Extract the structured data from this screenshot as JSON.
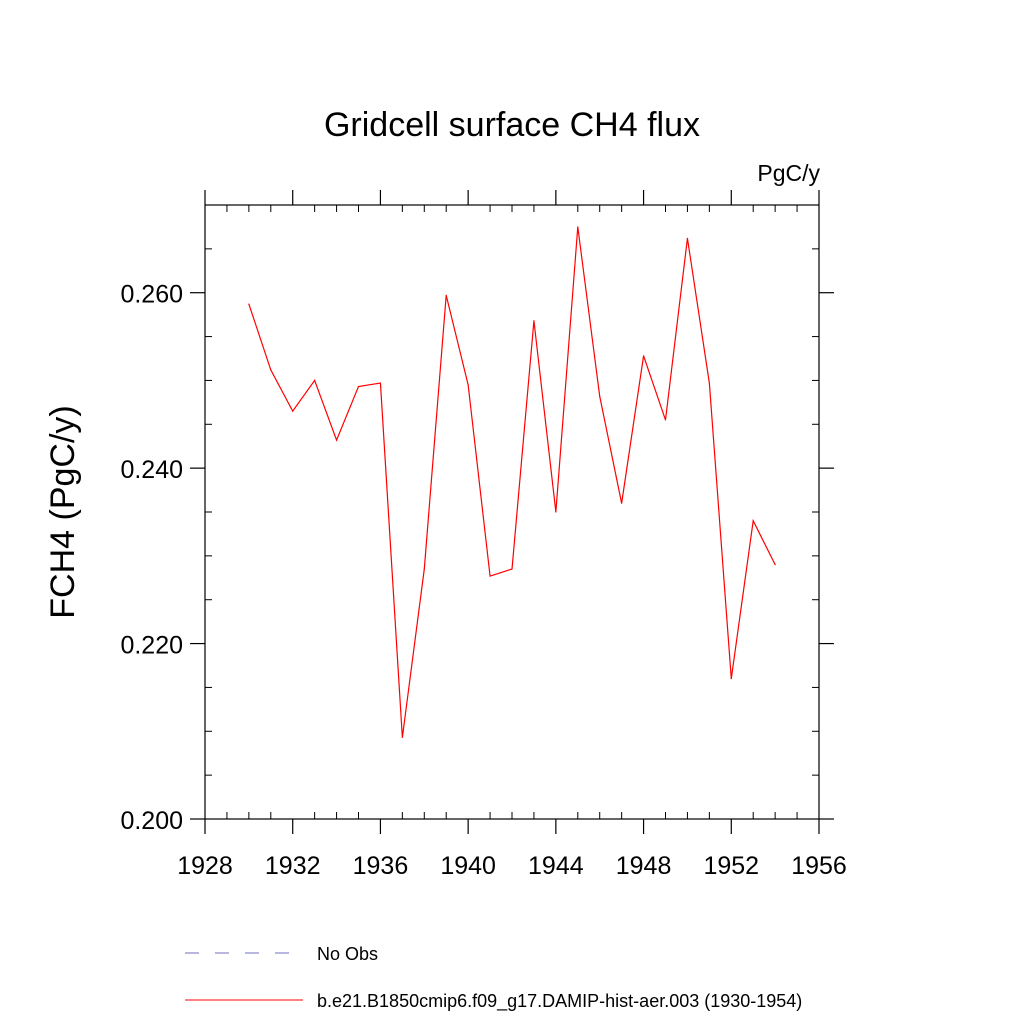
{
  "chart_data": {
    "type": "line",
    "title": "Gridcell surface CH4 flux",
    "units_label": "PgC/y",
    "ylabel": "FCH4  (PgC/y)",
    "xlabel": "",
    "xlim": [
      1928,
      1956
    ],
    "ylim": [
      0.2,
      0.27
    ],
    "x_ticks": [
      1928,
      1932,
      1936,
      1940,
      1944,
      1948,
      1952,
      1956
    ],
    "x_tick_labels": [
      "1928",
      "1932",
      "1936",
      "1940",
      "1944",
      "1948",
      "1952",
      "1956"
    ],
    "y_ticks": [
      0.2,
      0.22,
      0.24,
      0.26
    ],
    "y_tick_labels": [
      "0.200",
      "0.220",
      "0.240",
      "0.260"
    ],
    "y_minor_step": 0.005,
    "x_minor_step": 1,
    "grid": false,
    "legend_position": "bottom",
    "series": [
      {
        "name": "b.e21.B1850cmip6.f09_g17.DAMIP-hist-aer.003 (1930-1954)",
        "color": "#ff0000",
        "style": "solid",
        "x": [
          1930,
          1931,
          1932,
          1933,
          1934,
          1935,
          1936,
          1937,
          1938,
          1939,
          1940,
          1941,
          1942,
          1943,
          1944,
          1945,
          1946,
          1947,
          1948,
          1949,
          1950,
          1951,
          1952,
          1953,
          1954
        ],
        "y": [
          0.2587,
          0.2512,
          0.2465,
          0.25,
          0.2432,
          0.2493,
          0.2497,
          0.2093,
          0.2285,
          0.2597,
          0.2495,
          0.2277,
          0.2285,
          0.2568,
          0.235,
          0.2675,
          0.2482,
          0.236,
          0.2528,
          0.2455,
          0.2662,
          0.2497,
          0.216,
          0.234,
          0.229
        ]
      }
    ],
    "legend": [
      {
        "label": "No Obs",
        "color": "#6f6fbf",
        "style": "dashed"
      },
      {
        "label": "b.e21.B1850cmip6.f09_g17.DAMIP-hist-aer.003 (1930-1954)",
        "color": "#ff0000",
        "style": "solid"
      }
    ]
  }
}
